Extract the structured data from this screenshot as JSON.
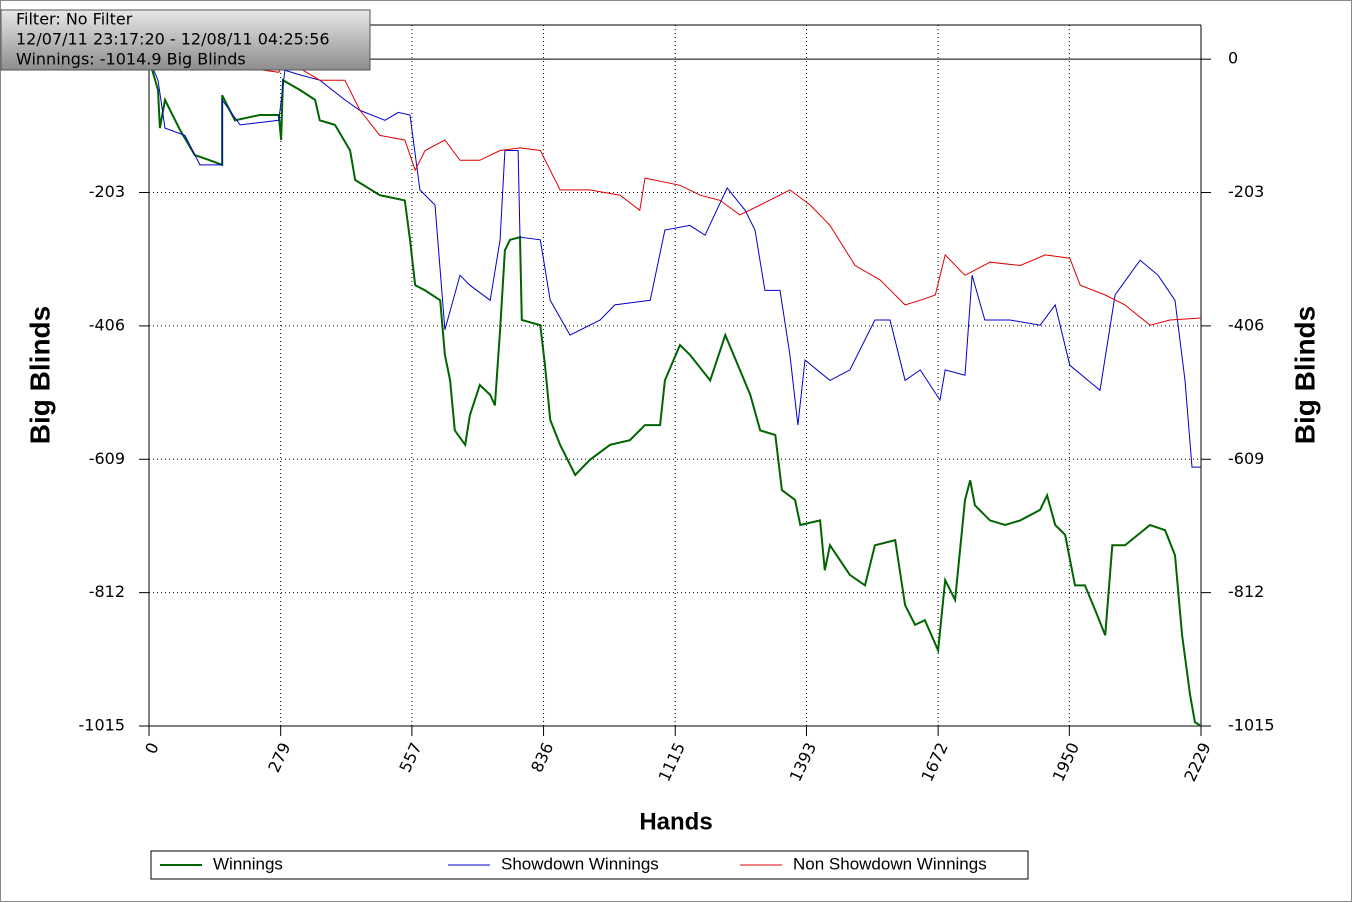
{
  "chart_data": {
    "type": "line",
    "info": [
      "Filter: No Filter",
      "12/07/11 23:17:20 - 12/08/11 04:25:56",
      "Winnings: -1014.9 Big Blinds"
    ],
    "xlabel": "Hands",
    "ylabel": "Big Blinds",
    "xlim": [
      0,
      2229
    ],
    "ylim": [
      -1015,
      52
    ],
    "xticks": [
      0,
      279,
      557,
      836,
      1115,
      1393,
      1672,
      1950,
      2229
    ],
    "yticks": [
      0,
      -203,
      -406,
      -609,
      -812,
      -1015
    ],
    "grid": true,
    "series": [
      {
        "name": "Winnings",
        "color": "#006400",
        "width": 2,
        "x": [
          0,
          19,
          23,
          34,
          66,
          97,
          129,
          155,
          155,
          182,
          235,
          275,
          280,
          284,
          320,
          352,
          362,
          394,
          426,
          437,
          489,
          542,
          553,
          564,
          585,
          617,
          627,
          638,
          648,
          670,
          680,
          701,
          723,
          733,
          744,
          754,
          765,
          786,
          790,
          829,
          839,
          850,
          871,
          903,
          934,
          977,
          1019,
          1051,
          1083,
          1093,
          1125,
          1146,
          1189,
          1221,
          1252,
          1274,
          1295,
          1327,
          1341,
          1369,
          1380,
          1422,
          1432,
          1443,
          1485,
          1517,
          1538,
          1581,
          1602,
          1623,
          1644,
          1672,
          1687,
          1708,
          1729,
          1740,
          1750,
          1782,
          1814,
          1846,
          1888,
          1903,
          1920,
          1941,
          1962,
          1983,
          2005,
          2026,
          2041,
          2068,
          2121,
          2153,
          2174,
          2189,
          2206,
          2216,
          2229
        ],
        "values": [
          0,
          -47,
          -105,
          -62,
          -108,
          -146,
          -154,
          -161,
          -55,
          -93,
          -85,
          -85,
          -123,
          -32,
          -47,
          -62,
          -93,
          -100,
          -139,
          -184,
          -207,
          -215,
          -275,
          -344,
          -352,
          -367,
          -450,
          -489,
          -565,
          -587,
          -542,
          -496,
          -511,
          -527,
          -412,
          -291,
          -275,
          -271,
          -397,
          -405,
          -466,
          -549,
          -587,
          -633,
          -610,
          -587,
          -580,
          -557,
          -557,
          -489,
          -435,
          -450,
          -489,
          -420,
          -473,
          -511,
          -565,
          -572,
          -656,
          -671,
          -709,
          -702,
          -778,
          -740,
          -785,
          -801,
          -740,
          -732,
          -831,
          -861,
          -854,
          -900,
          -793,
          -823,
          -671,
          -641,
          -679,
          -702,
          -709,
          -702,
          -686,
          -664,
          -709,
          -724,
          -801,
          -801,
          -839,
          -877,
          -740,
          -740,
          -709,
          -717,
          -755,
          -877,
          -968,
          -1009,
          -1015
        ]
      },
      {
        "name": "Showdown Winnings",
        "color": "#0000cc",
        "width": 1,
        "x": [
          0,
          19,
          34,
          76,
          108,
          155,
          155,
          193,
          275,
          288,
          320,
          362,
          415,
          447,
          500,
          528,
          553,
          574,
          606,
          627,
          659,
          680,
          723,
          744,
          754,
          782,
          786,
          829,
          850,
          892,
          956,
          987,
          1062,
          1093,
          1146,
          1178,
          1225,
          1263,
          1284,
          1305,
          1337,
          1358,
          1375,
          1390,
          1443,
          1485,
          1538,
          1570,
          1602,
          1634,
          1676,
          1687,
          1729,
          1744,
          1771,
          1824,
          1888,
          1920,
          1951,
          2015,
          2047,
          2100,
          2138,
          2174,
          2195,
          2210,
          2229
        ],
        "values": [
          0,
          -32,
          -105,
          -116,
          -161,
          -161,
          -62,
          -100,
          -93,
          -17,
          -24,
          -32,
          -62,
          -78,
          -93,
          -81,
          -85,
          -199,
          -222,
          -412,
          -329,
          -344,
          -367,
          -275,
          -139,
          -139,
          -271,
          -275,
          -367,
          -420,
          -397,
          -374,
          -367,
          -260,
          -253,
          -268,
          -196,
          -230,
          -260,
          -352,
          -352,
          -450,
          -557,
          -458,
          -489,
          -473,
          -397,
          -397,
          -489,
          -473,
          -519,
          -473,
          -481,
          -329,
          -397,
          -397,
          -405,
          -374,
          -466,
          -504,
          -359,
          -306,
          -329,
          -367,
          -489,
          -621,
          -621
        ]
      },
      {
        "name": "Non Showdown Winnings",
        "color": "#dd0000",
        "width": 1,
        "x": [
          0,
          23,
          108,
          193,
          275,
          288,
          320,
          362,
          415,
          447,
          489,
          542,
          564,
          585,
          627,
          659,
          701,
          744,
          786,
          829,
          871,
          934,
          998,
          1040,
          1051,
          1125,
          1168,
          1210,
          1252,
          1295,
          1358,
          1401,
          1443,
          1496,
          1549,
          1602,
          1634,
          1666,
          1687,
          1729,
          1782,
          1846,
          1899,
          1951,
          1973,
          2026,
          2068,
          2121,
          2163,
          2229
        ],
        "values": [
          0,
          -9,
          -5,
          -12,
          -20,
          -2,
          -14,
          -32,
          -32,
          -78,
          -116,
          -123,
          -169,
          -139,
          -123,
          -154,
          -154,
          -139,
          -135,
          -139,
          -199,
          -199,
          -207,
          -230,
          -181,
          -192,
          -207,
          -215,
          -237,
          -222,
          -199,
          -222,
          -253,
          -314,
          -336,
          -374,
          -367,
          -359,
          -298,
          -329,
          -309,
          -314,
          -298,
          -303,
          -344,
          -359,
          -374,
          -405,
          -397,
          -394
        ]
      }
    ]
  }
}
